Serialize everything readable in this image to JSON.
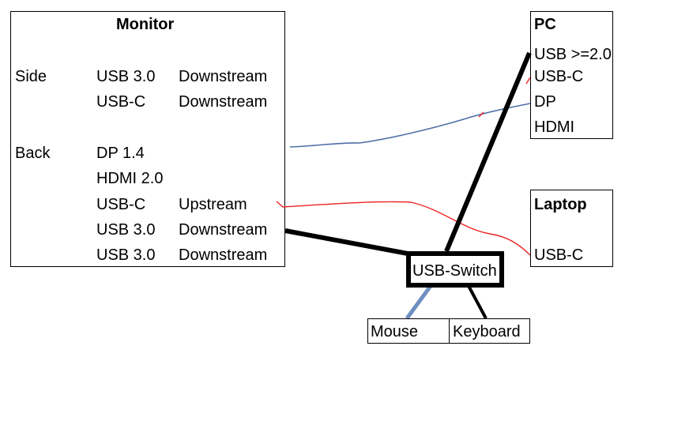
{
  "monitor": {
    "title": "Monitor",
    "side_label": "Side",
    "back_label": "Back",
    "ports": [
      {
        "port": "USB 3.0",
        "direction": "Downstream"
      },
      {
        "port": "USB-C",
        "direction": "Downstream"
      },
      {
        "port": "DP 1.4",
        "direction": ""
      },
      {
        "port": "HDMI 2.0",
        "direction": ""
      },
      {
        "port": "USB-C",
        "direction": "Upstream"
      },
      {
        "port": "USB 3.0",
        "direction": "Downstream"
      },
      {
        "port": "USB 3.0",
        "direction": "Downstream"
      }
    ]
  },
  "pc": {
    "title": "PC",
    "ports": [
      "USB >=2.0",
      "USB-C",
      "DP",
      "HDMI"
    ]
  },
  "laptop": {
    "title": "Laptop",
    "ports": [
      "USB-C"
    ]
  },
  "usb_switch": {
    "label": "USB-Switch"
  },
  "peripherals": {
    "mouse": "Mouse",
    "keyboard": "Keyboard"
  },
  "colors": {
    "dp_cable": "#4f6fa8",
    "usbc_cable": "#ee2222",
    "usb_cable": "#000000",
    "mouse_cable": "#6f8fc0"
  }
}
